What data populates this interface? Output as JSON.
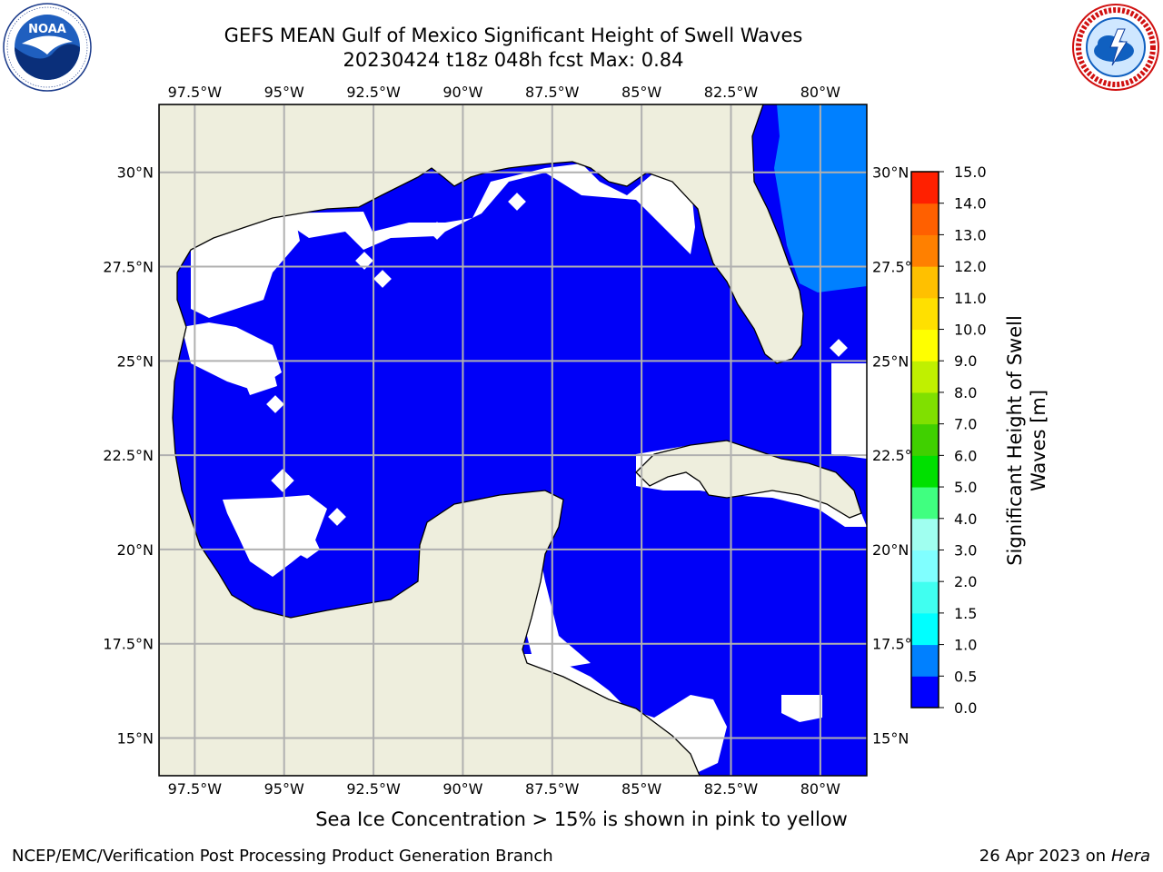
{
  "title_line1": "GEFS MEAN Gulf of Mexico Significant Height of Swell Waves",
  "title_line2": "20230424 t18z 048h fcst   Max: 0.84",
  "logos": {
    "left": "noaa-logo",
    "right": "nws-logo"
  },
  "map": {
    "projection": "lat-lon",
    "lon_range": [
      -98.5,
      -78.7
    ],
    "lat_range": [
      14.0,
      31.8
    ],
    "gridlines": true,
    "lon_ticks": [
      "97.5°W",
      "95°W",
      "92.5°W",
      "90°W",
      "87.5°W",
      "85°W",
      "82.5°W",
      "80°W"
    ],
    "lat_ticks": [
      "30°N",
      "27.5°N",
      "25°N",
      "22.5°N",
      "20°N",
      "17.5°N",
      "15°N"
    ],
    "colors": {
      "land": "#eeeedd",
      "low_swell": "#0000f8",
      "swell_0_5_1_0": "#0080ff",
      "swell_1_0_1_5": "#1ea0ff"
    }
  },
  "colorbar": {
    "label_line1": "Significant Height of Swell",
    "label_line2": "Waves [m]",
    "ticks": [
      "15.0",
      "14.0",
      "13.0",
      "12.0",
      "11.0",
      "10.0",
      "9.0",
      "8.0",
      "7.0",
      "6.0",
      "5.0",
      "4.0",
      "3.0",
      "2.0",
      "1.5",
      "1.0",
      "0.5",
      "0.0"
    ],
    "colors": [
      "#0000ff",
      "#0080ff",
      "#00ffff",
      "#40fff0",
      "#80ffff",
      "#a0fff0",
      "#40ff80",
      "#00e000",
      "#40d000",
      "#80e000",
      "#c0f000",
      "#ffff00",
      "#ffe000",
      "#ffc000",
      "#ff8000",
      "#ff6000",
      "#ff2000"
    ]
  },
  "footer_note": "Sea Ice Concentration > 15% is shown in pink to yellow",
  "credit": "NCEP/EMC/Verification Post Processing Product Generation Branch",
  "date_text": "26 Apr 2023 on ",
  "host": "Hera"
}
